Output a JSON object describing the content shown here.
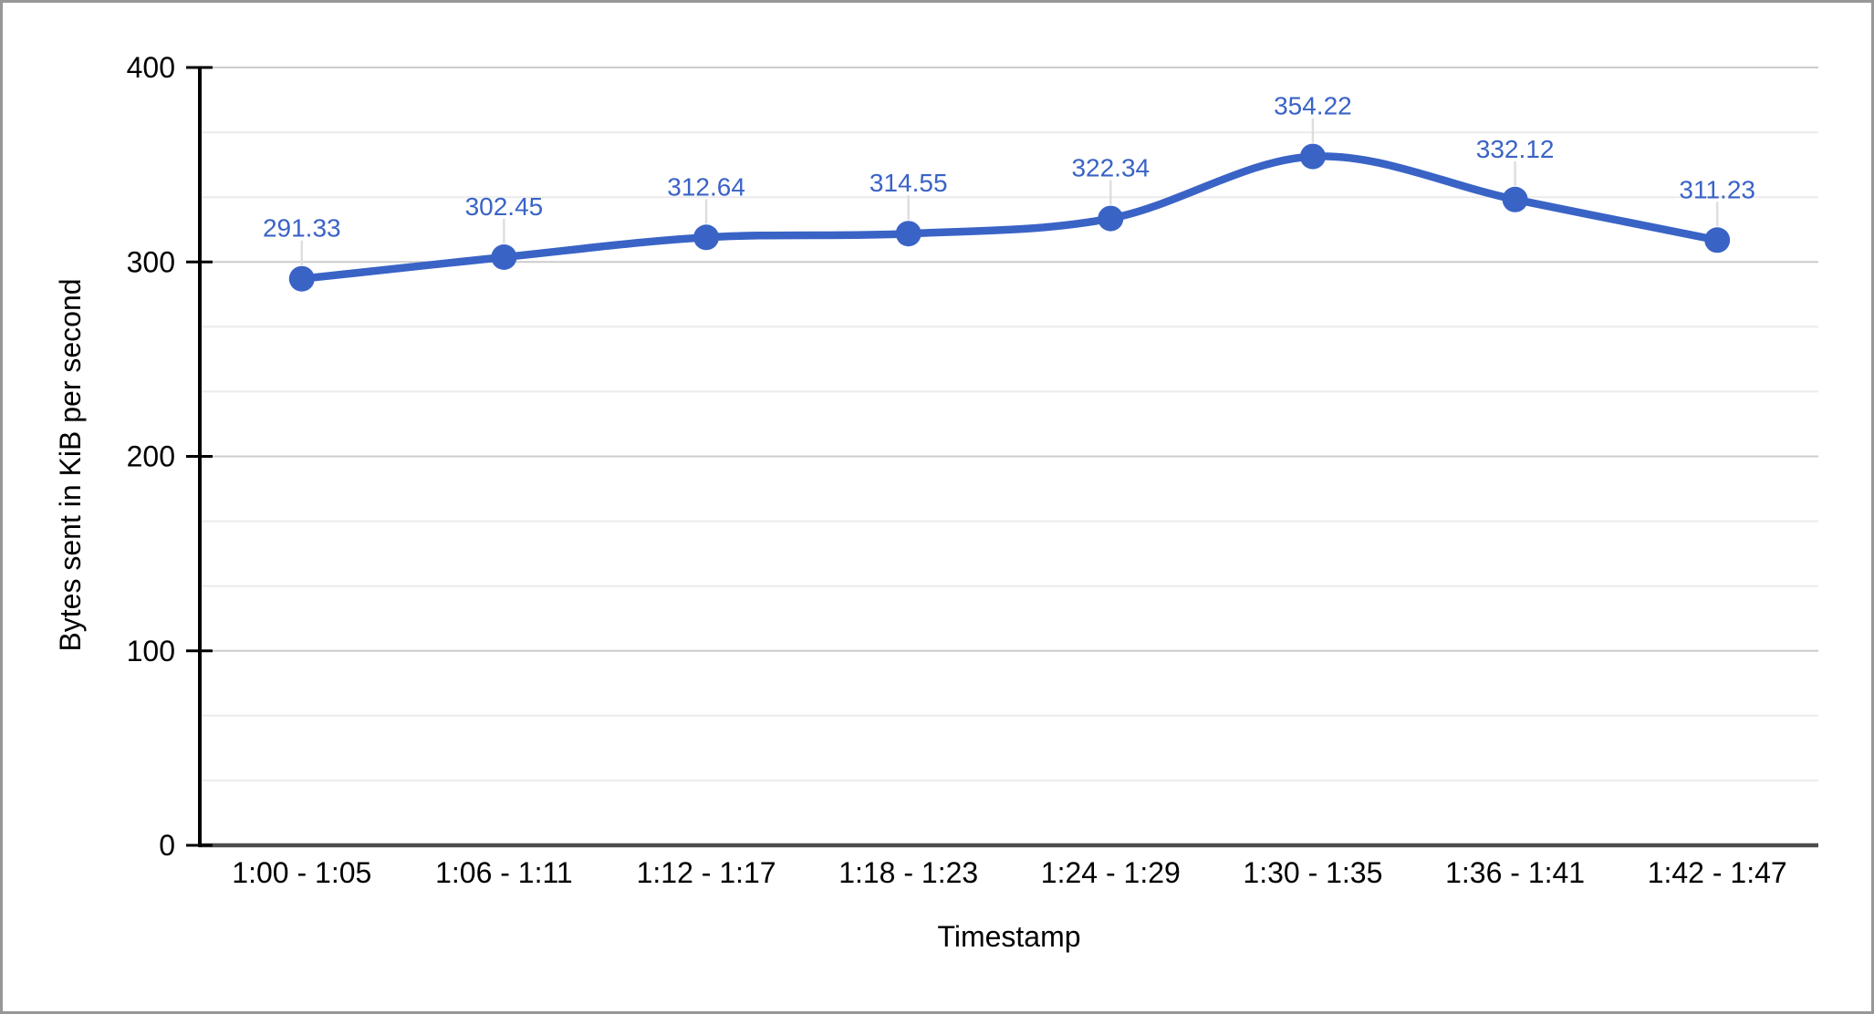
{
  "chart_data": {
    "type": "line",
    "title": "",
    "categories": [
      "1:00 - 1:05",
      "1:06 - 1:11",
      "1:12 - 1:17",
      "1:18 - 1:23",
      "1:24 - 1:29",
      "1:30 - 1:35",
      "1:36 - 1:41",
      "1:42 - 1:47"
    ],
    "values": [
      291.33,
      302.45,
      312.64,
      314.55,
      322.34,
      354.22,
      332.12,
      311.23
    ],
    "point_labels": [
      "291.33",
      "302.45",
      "312.64",
      "314.55",
      "322.34",
      "354.22",
      "332.12",
      "311.23"
    ],
    "xlabel": "Timestamp",
    "ylabel": "Bytes sent in KiB per second",
    "ylim": [
      0,
      400
    ],
    "yticks": [
      0,
      100,
      200,
      300,
      400
    ],
    "minor_gridlines_between_major": 2,
    "grid": "major+minor",
    "legend_position": "none",
    "line_smooth": true,
    "point_markers": true
  },
  "colors": {
    "series_line": "#3A63C6",
    "point_marker": "#3A63C6",
    "point_label": "#3A63C6",
    "major_gridline": "#cccccc",
    "minor_gridline": "#ebebeb",
    "y_axis_line": "#000000",
    "x_baseline": "#4c4c4c",
    "tick_mark": "#000000",
    "tick_label": "#000000",
    "axis_title": "#000000",
    "annotation_stem": "#dedede",
    "chart_border": "#979797",
    "background": "#ffffff"
  }
}
